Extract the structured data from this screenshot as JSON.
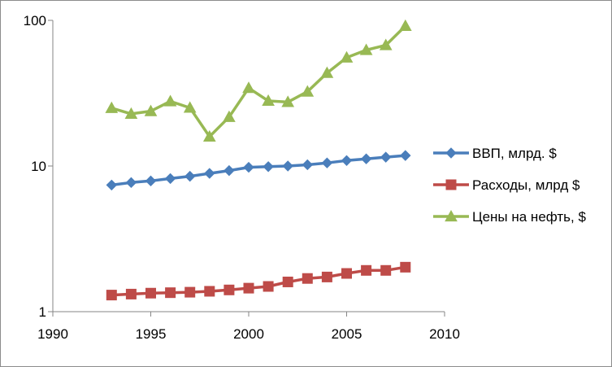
{
  "chart_data": {
    "type": "line",
    "title": "",
    "xlabel": "",
    "ylabel": "",
    "y_scale": "log",
    "xlim": [
      1990,
      2010
    ],
    "ylim": [
      1,
      100
    ],
    "x_ticks": [
      "1990",
      "1995",
      "2000",
      "2005",
      "2010"
    ],
    "y_ticks": [
      "1",
      "10",
      "100"
    ],
    "grid": false,
    "legend_position": "right",
    "x": [
      1993,
      1994,
      1995,
      1996,
      1997,
      1998,
      1999,
      2000,
      2001,
      2002,
      2003,
      2004,
      2005,
      2006,
      2007,
      2008
    ],
    "series": [
      {
        "name": "ВВП, млрд. $",
        "color": "#4a7ebb",
        "marker": "diamond",
        "values": [
          7.4,
          7.7,
          7.9,
          8.2,
          8.5,
          8.9,
          9.3,
          9.8,
          9.9,
          10.0,
          10.2,
          10.5,
          10.9,
          11.2,
          11.5,
          11.8
        ]
      },
      {
        "name": "Расходы, млрд $",
        "color": "#be4b48",
        "marker": "square",
        "values": [
          1.3,
          1.32,
          1.34,
          1.35,
          1.36,
          1.38,
          1.41,
          1.45,
          1.49,
          1.6,
          1.69,
          1.73,
          1.83,
          1.92,
          1.92,
          2.02
        ]
      },
      {
        "name": "Цены на нефть, $",
        "color": "#98b954",
        "marker": "triangle",
        "values": [
          25.0,
          22.8,
          23.8,
          27.8,
          25.1,
          15.9,
          21.7,
          34.3,
          28.0,
          27.5,
          32.4,
          43.5,
          55.5,
          62.5,
          67.5,
          91.5
        ]
      }
    ]
  }
}
